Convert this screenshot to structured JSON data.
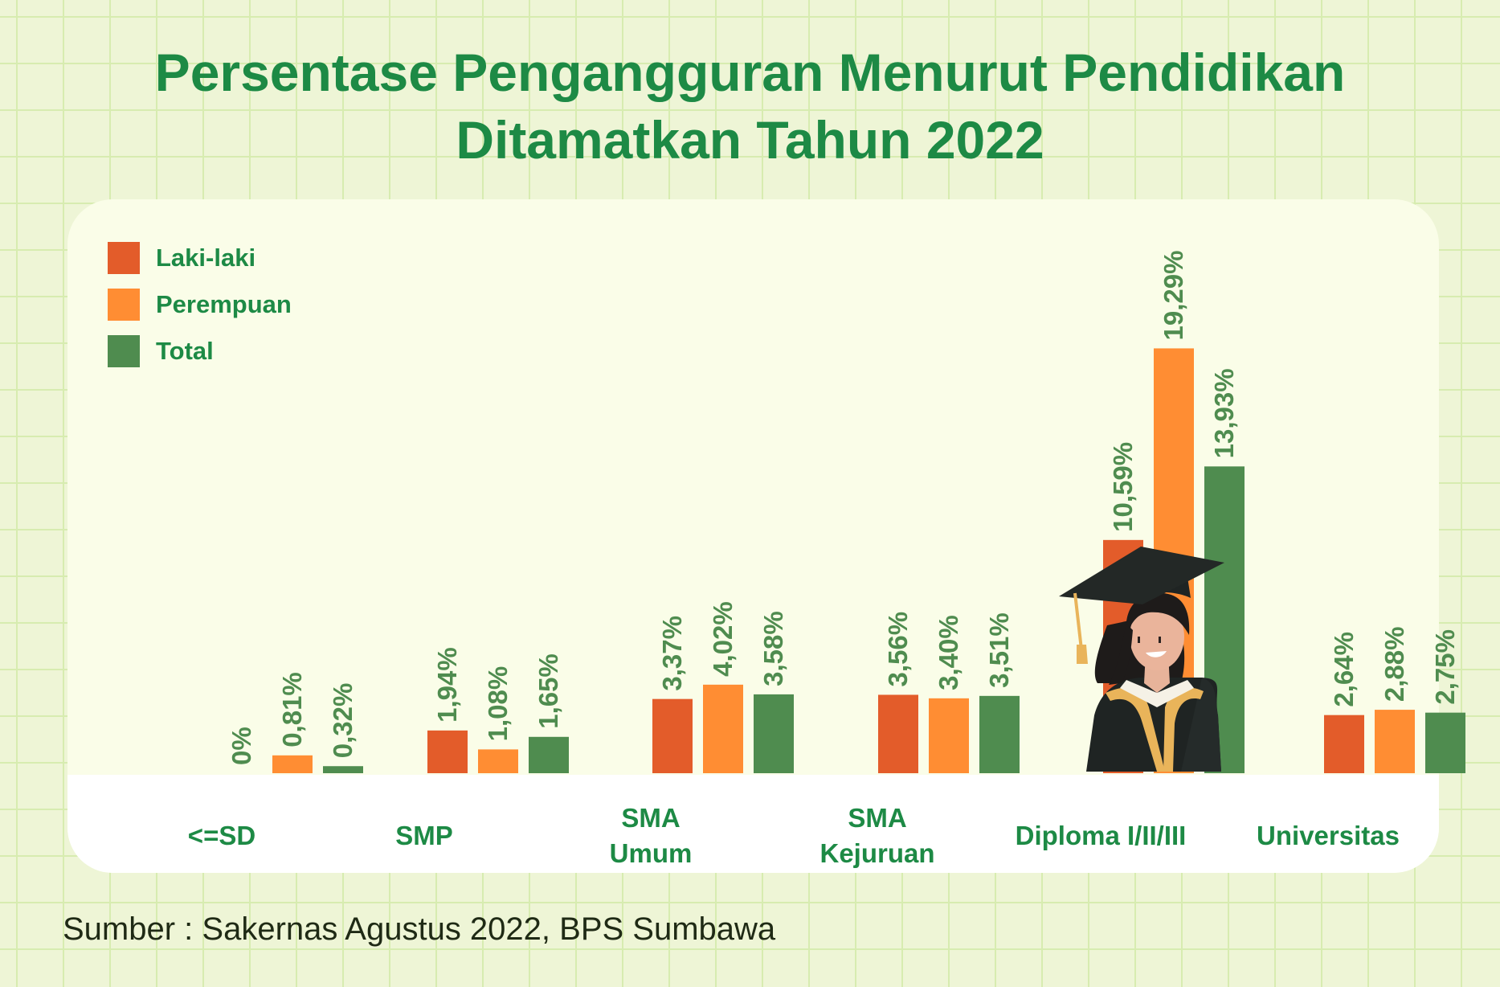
{
  "title": {
    "line1": "Persentase Pengangguran Menurut Pendidikan",
    "line2": "Ditamatkan Tahun 2022"
  },
  "colors": {
    "laki_laki": "#e35c2a",
    "perempuan": "#ff8d33",
    "total": "#4f8c4f",
    "text_green": "#1d8a45",
    "value_label": "#4f8c4f"
  },
  "legend": [
    {
      "label": "Laki-laki",
      "color": "#e35c2a"
    },
    {
      "label": "Perempuan",
      "color": "#ff8d33"
    },
    {
      "label": "Total",
      "color": "#4f8c4f"
    }
  ],
  "categories_display": [
    {
      "line1": "<=SD",
      "line2": ""
    },
    {
      "line1": "SMP",
      "line2": ""
    },
    {
      "line1": "SMA",
      "line2": "Umum"
    },
    {
      "line1": "SMA",
      "line2": "Kejuruan"
    },
    {
      "line1": "Diploma I/II/III",
      "line2": ""
    },
    {
      "line1": "Universitas",
      "line2": ""
    }
  ],
  "chart_data": {
    "type": "bar",
    "categories": [
      "<=SD",
      "SMP",
      "SMA Umum",
      "SMA Kejuruan",
      "Diploma I/II/III",
      "Universitas"
    ],
    "series": [
      {
        "name": "Laki-laki",
        "color": "#e35c2a",
        "values": [
          0,
          1.94,
          3.37,
          3.56,
          10.59,
          2.64
        ],
        "labels": [
          "0%",
          "1,94%",
          "3,37%",
          "3,56%",
          "10,59%",
          "2,64%"
        ]
      },
      {
        "name": "Perempuan",
        "color": "#ff8d33",
        "values": [
          0.81,
          1.08,
          4.02,
          3.4,
          19.29,
          2.88
        ],
        "labels": [
          "0,81%",
          "1,08%",
          "4,02%",
          "3,40%",
          "19,29%",
          "2,88%"
        ]
      },
      {
        "name": "Total",
        "color": "#4f8c4f",
        "values": [
          0.32,
          1.65,
          3.58,
          3.51,
          13.93,
          2.75
        ],
        "labels": [
          "0,32%",
          "1,65%",
          "3,58%",
          "3,51%",
          "13,93%",
          "2,75%"
        ]
      }
    ],
    "title": "Persentase Pengangguran Menurut Pendidikan Ditamatkan Tahun 2022",
    "ylim": [
      0,
      20
    ],
    "grid": false,
    "legend_position": "top-left"
  },
  "source": "Sumber : Sakernas Agustus 2022, BPS Sumbawa",
  "illustration": {
    "icon": "graduate-icon"
  }
}
